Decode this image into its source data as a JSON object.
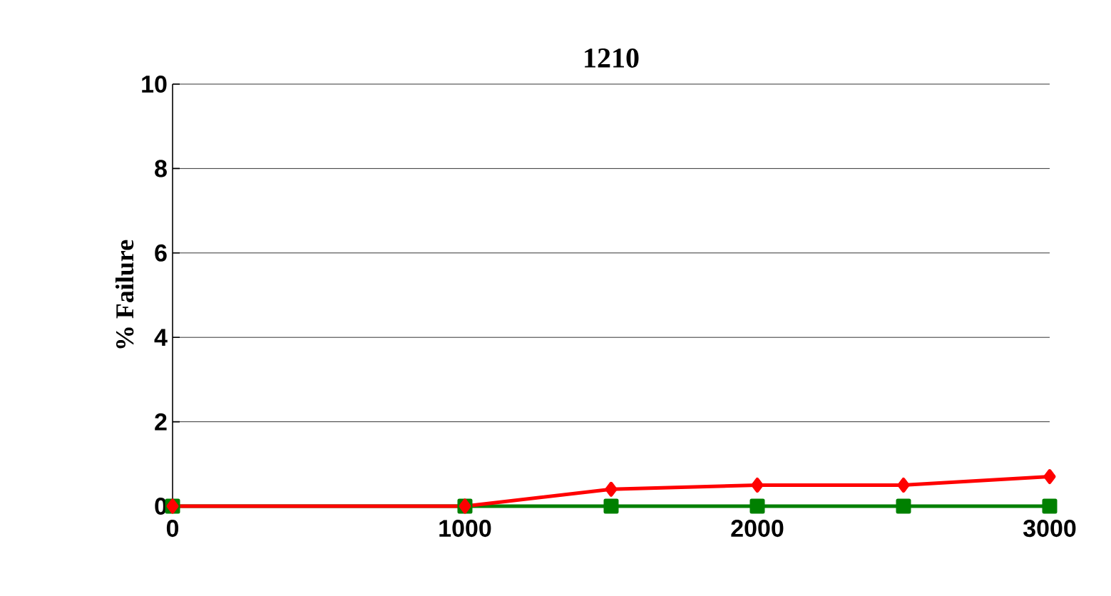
{
  "chart_data": {
    "type": "line",
    "title": "1210",
    "ylabel": "% Failure",
    "x": [
      0,
      1000,
      1500,
      2000,
      2500,
      3000
    ],
    "series": [
      {
        "color": "#ff0000",
        "marker": "diamond",
        "values": [
          0,
          0,
          0.4,
          0.5,
          0.5,
          0.7
        ]
      },
      {
        "color": "#008000",
        "marker": "square",
        "values": [
          0,
          0,
          0,
          0,
          0,
          0
        ]
      }
    ],
    "xlim": [
      0,
      3000
    ],
    "xticks": [
      0,
      1000,
      2000,
      3000
    ],
    "ylim": [
      0,
      10
    ],
    "yticks": [
      0,
      2,
      4,
      6,
      8,
      10
    ],
    "grid": "y",
    "line_style": "solid"
  }
}
